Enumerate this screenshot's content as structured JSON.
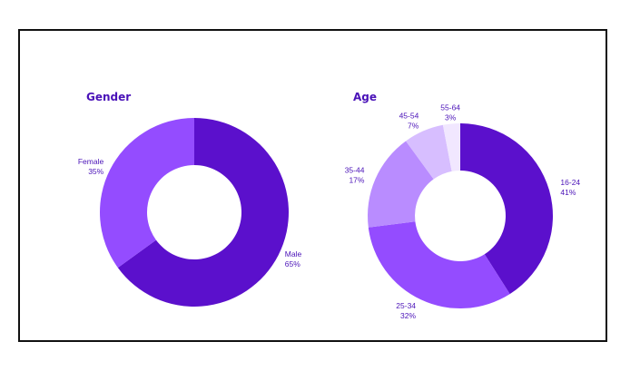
{
  "colors": {
    "text": "#4a12b8",
    "frame": "#111111",
    "background": "#ffffff"
  },
  "chart_data": [
    {
      "type": "pie",
      "title": "Gender",
      "donut": true,
      "categories": [
        "Male",
        "Female"
      ],
      "values": [
        65,
        35
      ],
      "value_labels": [
        "65%",
        "35%"
      ],
      "colors": [
        "#5b10cc",
        "#944cff"
      ]
    },
    {
      "type": "pie",
      "title": "Age",
      "donut": true,
      "categories": [
        "16-24",
        "25-34",
        "35-44",
        "45-54",
        "55-64"
      ],
      "values": [
        41,
        32,
        17,
        7,
        3
      ],
      "value_labels": [
        "41%",
        "32%",
        "17%",
        "7%",
        "3%"
      ],
      "colors": [
        "#5b10cc",
        "#944cff",
        "#b98cff",
        "#d7beff",
        "#f1e7ff"
      ]
    }
  ]
}
